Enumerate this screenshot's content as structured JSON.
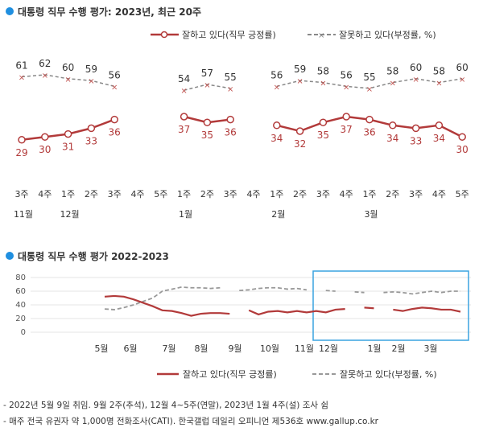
{
  "colors": {
    "approve": "#b23a3a",
    "disapprove": "#888888",
    "dot": "#1f8fe0",
    "highlight": "#3aa3e0"
  },
  "chart_data": [
    {
      "type": "line",
      "title": "대통령 직무 수행 평가: 2023년, 최근 20주",
      "legend": {
        "approve": "잘하고 있다(직무 긍정률)",
        "disapprove": "잘못하고 있다(부정률, %)"
      },
      "x_labels": [
        "3주",
        "4주",
        "1주",
        "2주",
        "3주",
        "4주",
        "5주",
        "1주",
        "2주",
        "3주",
        "4주",
        "1주",
        "2주",
        "3주",
        "4주",
        "1주",
        "2주",
        "3주",
        "4주",
        "5주"
      ],
      "months": [
        {
          "label": "11월",
          "index": 0
        },
        {
          "label": "12월",
          "index": 2
        },
        {
          "label": "1월",
          "index": 7
        },
        {
          "label": "2월",
          "index": 11
        },
        {
          "label": "3월",
          "index": 15
        }
      ],
      "segments": [
        {
          "approve": [
            29,
            30,
            31,
            33,
            36
          ],
          "disapprove": [
            61,
            62,
            60,
            59,
            56
          ],
          "start": 0
        },
        {
          "approve": [
            37,
            35,
            36
          ],
          "disapprove": [
            54,
            57,
            55
          ],
          "start": 7
        },
        {
          "approve": [
            34,
            32,
            35,
            37,
            36,
            34,
            33,
            34,
            30
          ],
          "disapprove": [
            56,
            59,
            58,
            56,
            55,
            58,
            60,
            58,
            60
          ],
          "start": 11
        }
      ]
    },
    {
      "type": "line",
      "title": "대통령 직무 수행 평가 2022-2023",
      "ylim": [
        0,
        80
      ],
      "y_ticks": [
        0,
        20,
        40,
        60,
        80
      ],
      "x_labels": [
        "5월",
        "6월",
        "7월",
        "8월",
        "9월",
        "10월",
        "11월",
        "12월",
        "1월",
        "2월",
        "3월"
      ],
      "legend": {
        "approve": "잘하고 있다(직무 긍정률)",
        "disapprove": "잘못하고 있다(부정률, %)"
      },
      "approve": [
        52,
        53,
        52,
        48,
        43,
        38,
        32,
        31,
        28,
        24,
        27,
        28,
        28,
        27,
        null,
        32,
        26,
        30,
        31,
        29,
        31,
        29,
        31,
        29,
        33,
        34,
        null,
        36,
        35,
        null,
        33,
        31,
        34,
        36,
        35,
        33,
        33,
        30
      ],
      "disapprove": [
        34,
        33,
        36,
        40,
        45,
        50,
        60,
        63,
        66,
        65,
        65,
        64,
        65,
        null,
        61,
        62,
        64,
        65,
        65,
        63,
        64,
        62,
        null,
        61,
        60,
        null,
        59,
        58,
        null,
        58,
        59,
        58,
        56,
        58,
        60,
        58,
        60,
        60
      ],
      "highlight": "최근 20주"
    }
  ],
  "footnotes": [
    "- 2022년 5월 9일 취임. 9월 2주(추석), 12월 4~5주(연말), 2023년 1월 4주(설) 조사 쉼",
    "- 매주 전국 유권자 약 1,000명 전화조사(CATI). 한국갤럽 데일리 오피니언 제536호 www.gallup.co.kr"
  ]
}
